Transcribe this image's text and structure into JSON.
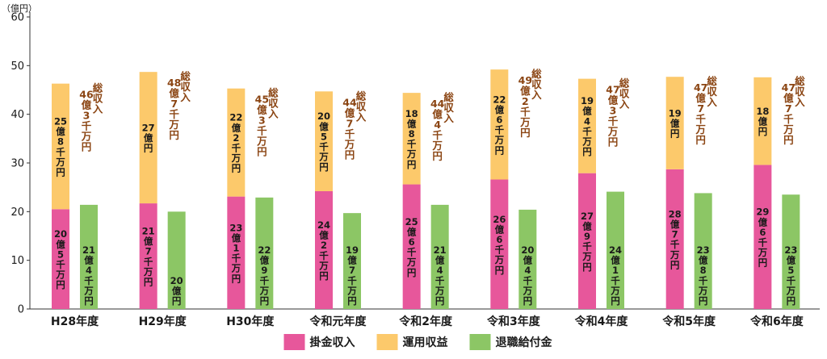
{
  "chart_data": {
    "type": "bar",
    "unit": "（億円）",
    "ylim": [
      0,
      60
    ],
    "yticks": [
      0,
      10,
      20,
      30,
      40,
      50,
      60
    ],
    "categories": [
      "H28年度",
      "H29年度",
      "H30年度",
      "令和元年度",
      "令和2年度",
      "令和3年度",
      "令和4年度",
      "令和5年度",
      "令和6年度"
    ],
    "series": [
      {
        "name": "掛金収入",
        "color": "#e7579b",
        "stack": "income",
        "values": [
          20.5,
          21.7,
          23.1,
          24.2,
          25.6,
          26.6,
          27.9,
          28.7,
          29.6
        ],
        "labels": [
          "20億5千万円",
          "21億7千万円",
          "23億1千万円",
          "24億2千万円",
          "25億6千万円",
          "26億6千万円",
          "27億9千万円",
          "28億7千万円",
          "29億6千万円"
        ]
      },
      {
        "name": "運用収益",
        "color": "#fcc96b",
        "stack": "income",
        "values": [
          25.8,
          27.0,
          22.2,
          20.5,
          18.8,
          22.6,
          19.4,
          19.0,
          18.0
        ],
        "labels": [
          "25億8千万円",
          "27億円",
          "22億2千万円",
          "20億5千万円",
          "18億8千万円",
          "22億6千万円",
          "19億4千万円",
          "19億円",
          "18億円"
        ]
      },
      {
        "name": "退職給付金",
        "color": "#8cc665",
        "stack": "payout",
        "values": [
          21.4,
          20.0,
          22.9,
          19.7,
          21.4,
          20.4,
          24.1,
          23.8,
          23.5
        ],
        "labels": [
          "21億4千万円",
          "20億円",
          "22億9千万円",
          "19億7千万円",
          "21億4千万円",
          "20億4千万円",
          "24億1千万円",
          "23億8千万円",
          "23億5千万円"
        ]
      }
    ],
    "totals": {
      "name": "総収入",
      "values": [
        46.3,
        48.7,
        45.3,
        44.7,
        44.4,
        49.2,
        47.3,
        47.7,
        47.7
      ],
      "labels": [
        "46億3千万円",
        "48億7千万円",
        "45億3千万円",
        "44億7千万円",
        "44億4千万円",
        "49億2千万円",
        "47億3千万円",
        "47億7千万円",
        "47億7千万円"
      ]
    },
    "legend_position": "bottom-center",
    "grid": false
  }
}
